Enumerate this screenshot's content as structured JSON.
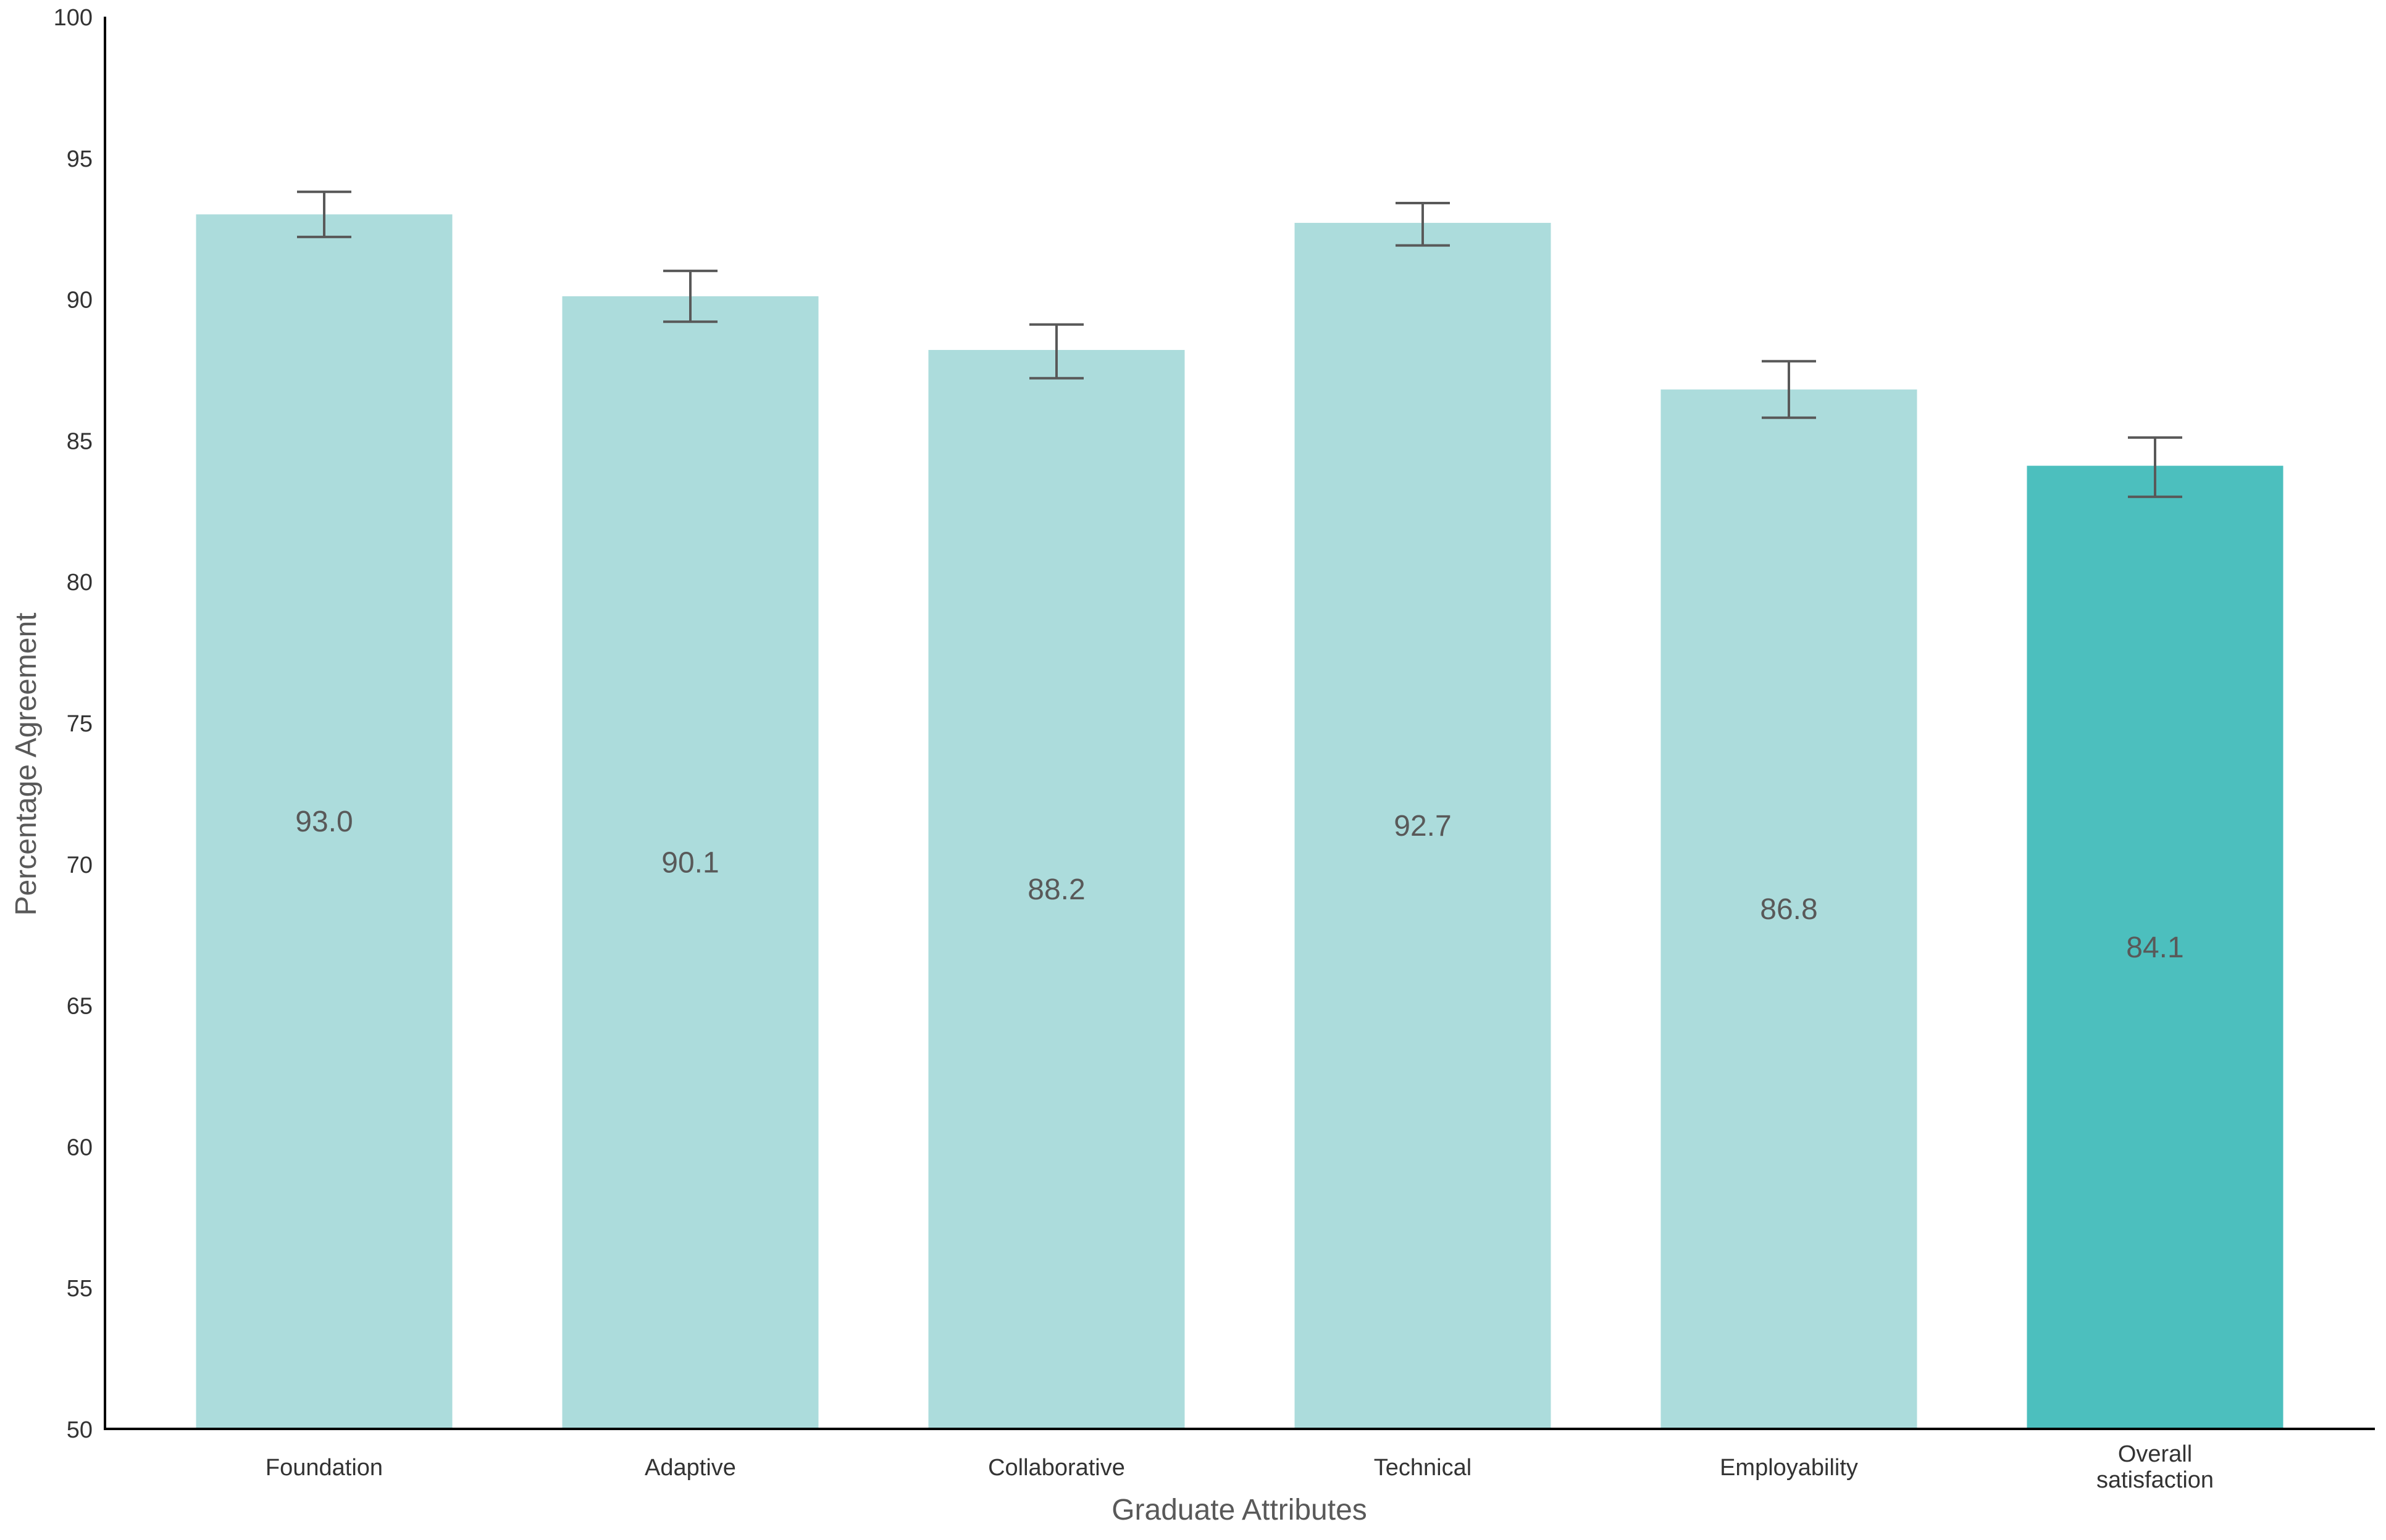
{
  "chart_data": {
    "type": "bar",
    "title": "",
    "xlabel": "Graduate Attributes",
    "ylabel": "Percentage Agreement",
    "ylim": [
      50,
      100
    ],
    "yticks": [
      50,
      55,
      60,
      65,
      70,
      75,
      80,
      85,
      90,
      95,
      100
    ],
    "grid": false,
    "categories": [
      "Foundation",
      "Adaptive",
      "Collaborative",
      "Technical",
      "Employability",
      "Overall satisfaction"
    ],
    "category_lines": [
      [
        "Foundation"
      ],
      [
        "Adaptive"
      ],
      [
        "Collaborative"
      ],
      [
        "Technical"
      ],
      [
        "Employability"
      ],
      [
        "Overall",
        "satisfaction"
      ]
    ],
    "values": [
      93.0,
      90.1,
      88.2,
      92.7,
      86.8,
      84.1
    ],
    "value_labels": [
      "93.0",
      "90.1",
      "88.2",
      "92.7",
      "86.8",
      "84.1"
    ],
    "error_low": [
      92.2,
      89.2,
      87.2,
      91.9,
      85.8,
      83.0
    ],
    "error_high": [
      93.8,
      91.0,
      89.1,
      93.4,
      87.8,
      85.1
    ],
    "colors": [
      "#acdcdc",
      "#acdcdc",
      "#acdcdc",
      "#acdcdc",
      "#acdcdc",
      "#4cbfbe"
    ],
    "error_bar_color": "#595959",
    "axis_color": "#000000"
  }
}
